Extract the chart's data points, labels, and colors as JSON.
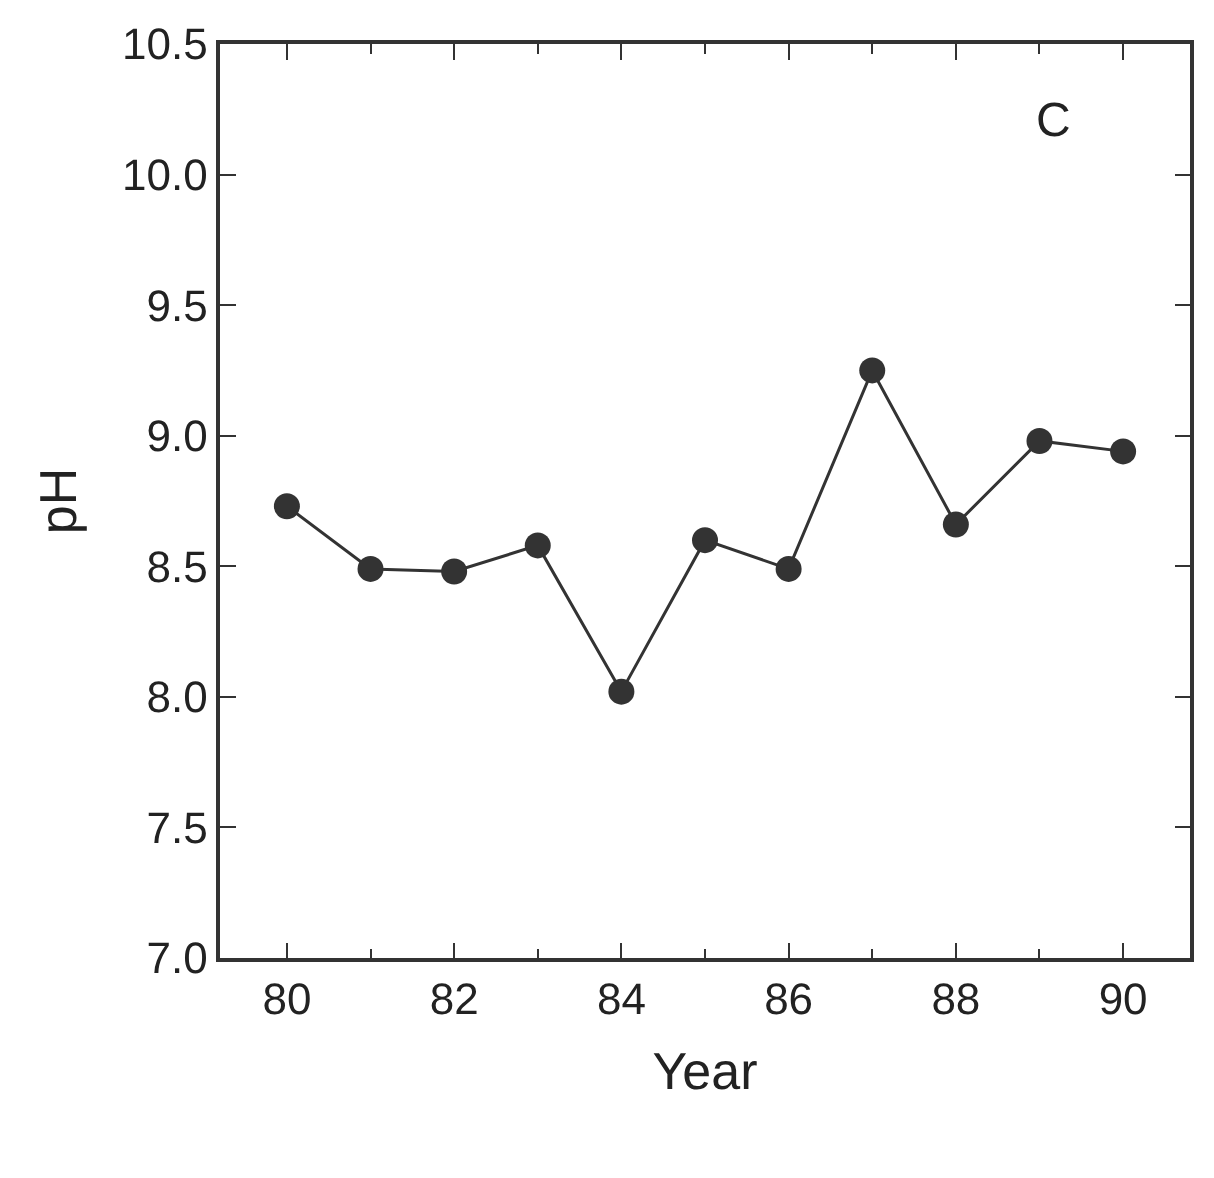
{
  "chart_data": {
    "type": "line",
    "xlabel": "Year",
    "ylabel": "pH",
    "annotations": [
      "C"
    ],
    "x": [
      80,
      81,
      82,
      83,
      84,
      85,
      86,
      87,
      88,
      89,
      90
    ],
    "series": [
      {
        "color": "#333333",
        "values": [
          8.73,
          8.49,
          8.48,
          8.58,
          8.02,
          8.6,
          8.49,
          9.25,
          8.66,
          8.98,
          8.94
        ]
      }
    ],
    "xlim": [
      79.2,
      90.8
    ],
    "xticks": [
      80,
      82,
      84,
      86,
      88,
      90
    ],
    "ylim": [
      7.0,
      10.5
    ],
    "yticks": [
      {
        "value": 7.0,
        "label": "7.0"
      },
      {
        "value": 7.5,
        "label": "7.5"
      },
      {
        "value": 8.0,
        "label": "8.0"
      },
      {
        "value": 8.5,
        "label": "8.5"
      },
      {
        "value": 9.0,
        "label": "9.0"
      },
      {
        "value": 9.5,
        "label": "9.5"
      },
      {
        "value": 10.0,
        "label": "10.0"
      },
      {
        "value": 10.5,
        "label": "10.5"
      }
    ],
    "marker": "circle",
    "line_style": "solid"
  }
}
